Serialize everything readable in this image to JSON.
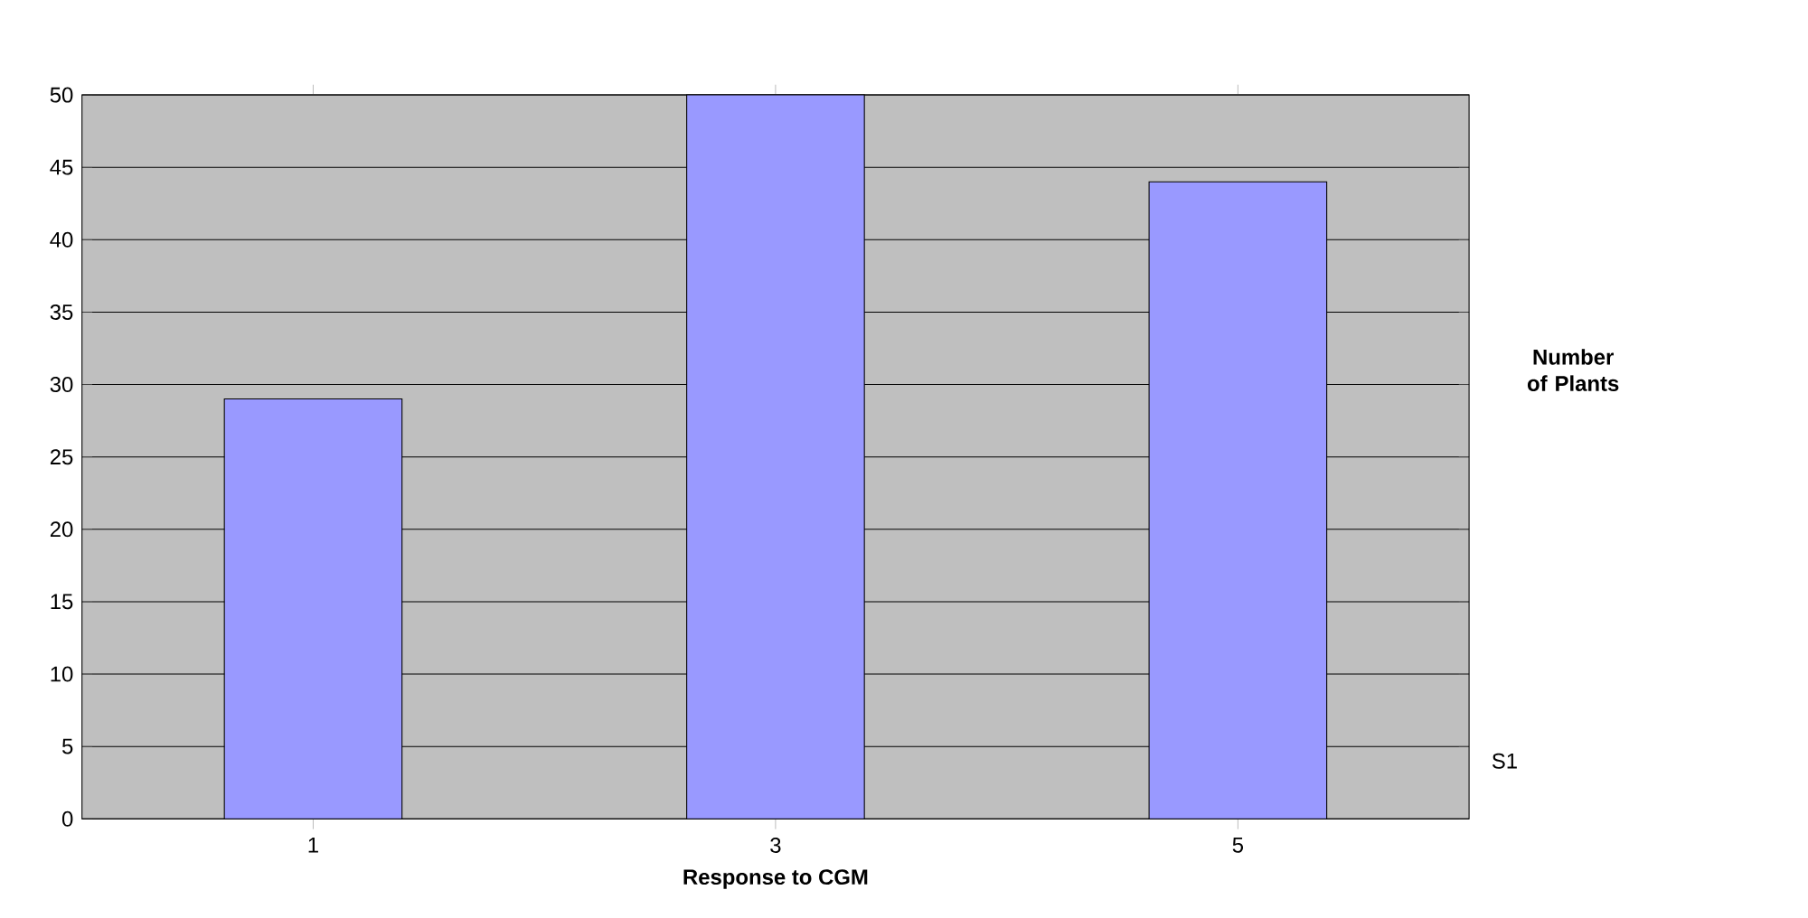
{
  "chart_data": {
    "type": "bar",
    "xlabel": "Response to CGM",
    "ylabel": "Number of Plants",
    "categories": [
      "1",
      "3",
      "5"
    ],
    "series": [
      {
        "name": "S1",
        "color": "#9999ff",
        "values": [
          29,
          50,
          44
        ]
      }
    ],
    "ylim": [
      0,
      50
    ],
    "yticks": [
      0,
      5,
      10,
      15,
      20,
      25,
      30,
      35,
      40,
      45,
      50
    ],
    "grid": "y"
  }
}
